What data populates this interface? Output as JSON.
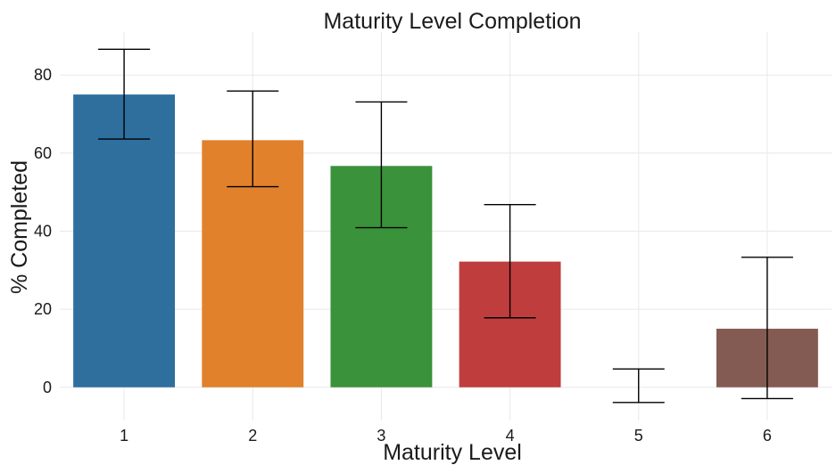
{
  "chart_data": {
    "type": "bar",
    "title": "Maturity Level Completion",
    "xlabel": "Maturity Level",
    "ylabel": "% Completed",
    "categories": [
      "1",
      "2",
      "3",
      "4",
      "5",
      "6"
    ],
    "values": [
      75.0,
      63.3,
      56.7,
      32.2,
      0.0,
      15.0
    ],
    "error_low": [
      63.6,
      51.4,
      40.9,
      17.8,
      -3.9,
      -2.9
    ],
    "error_high": [
      86.6,
      75.9,
      73.1,
      46.8,
      4.7,
      33.3
    ],
    "colors": [
      "#2e6f9e",
      "#e1812c",
      "#3a923a",
      "#c03d3e",
      "#9372b2",
      "#845b53"
    ],
    "yticks": [
      0,
      20,
      40,
      60,
      80
    ],
    "ylim": [
      -8.5,
      91
    ],
    "grid": true
  }
}
